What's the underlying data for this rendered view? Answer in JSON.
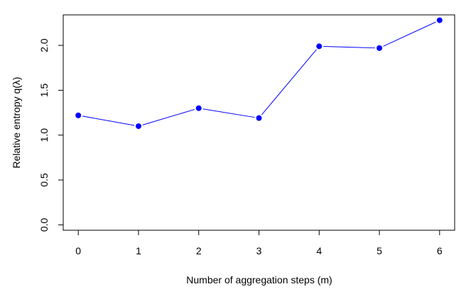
{
  "chart_data": {
    "type": "line",
    "xlabel": "Number of aggregation steps (m)",
    "ylabel": "Relative entropy q(λ)",
    "xlim": [
      -0.25,
      6.25
    ],
    "ylim": [
      -0.06,
      2.34
    ],
    "x_ticks": [
      "0",
      "1",
      "2",
      "3",
      "4",
      "5",
      "6"
    ],
    "y_ticks": [
      "0.0",
      "0.5",
      "1.0",
      "1.5",
      "2.0"
    ],
    "grid": false,
    "legend": "none",
    "series": [
      {
        "color": "#0000ff",
        "x": [
          0,
          1,
          2,
          3,
          4,
          5,
          6
        ],
        "values": [
          1.22,
          1.1,
          1.3,
          1.19,
          1.99,
          1.97,
          2.28
        ]
      }
    ]
  }
}
